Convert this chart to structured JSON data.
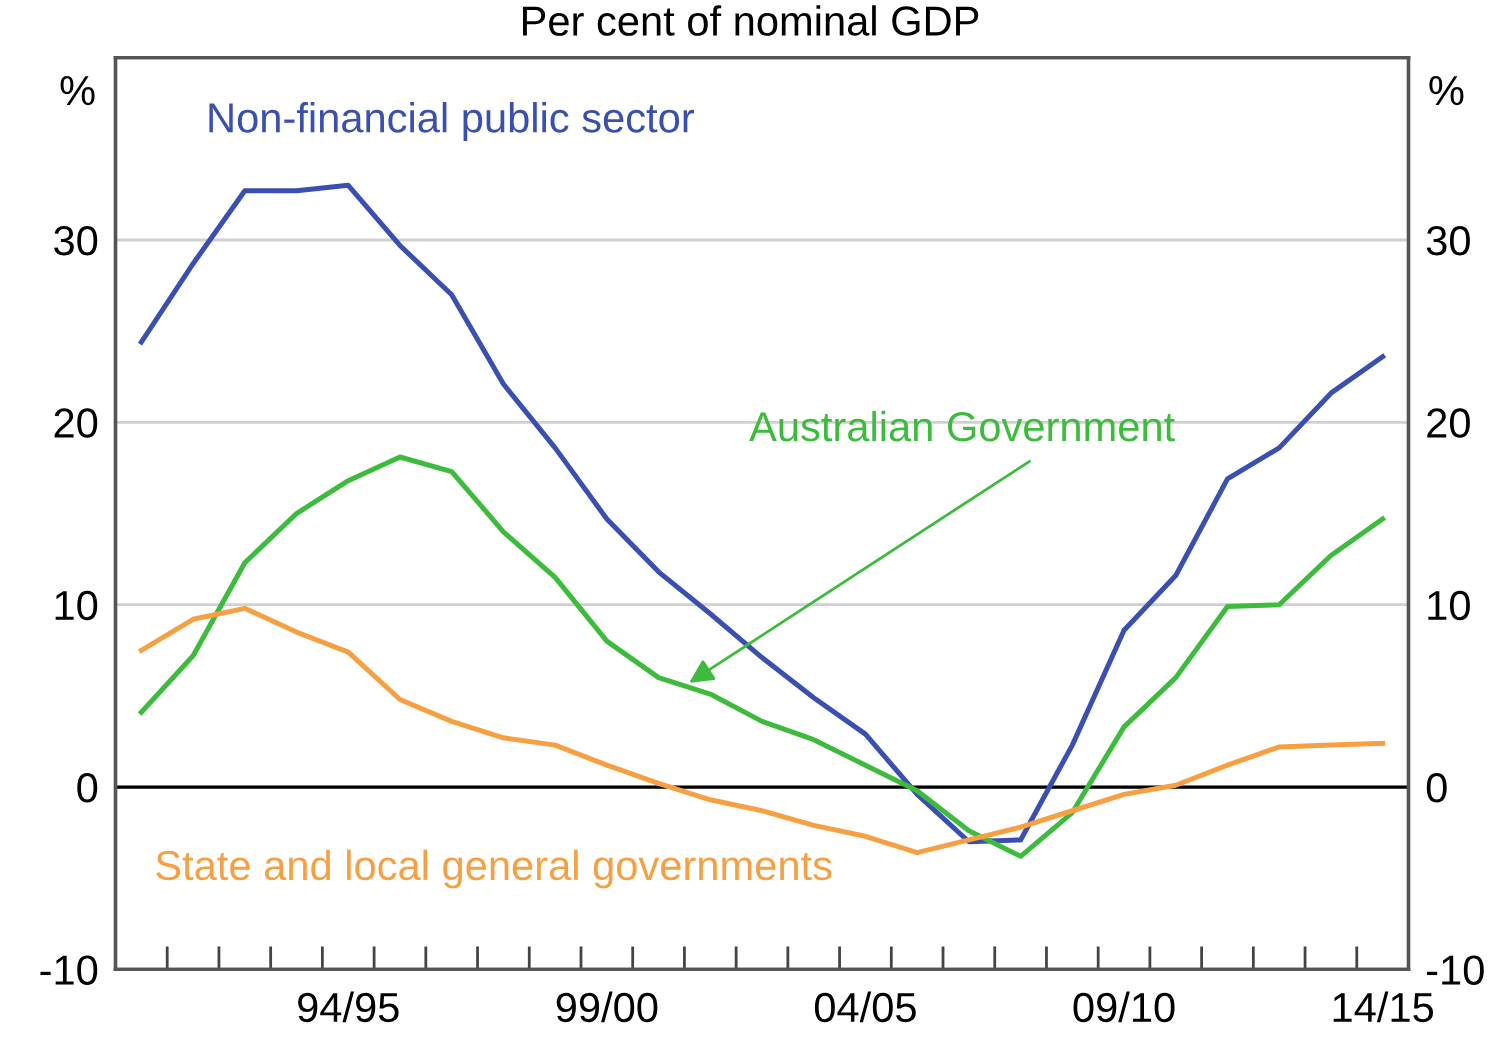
{
  "chart_data": {
    "type": "line",
    "title": "Per cent of nominal GDP",
    "ylabel": "%",
    "y2label": "%",
    "categories": [
      null,
      null,
      null,
      null,
      "94/95",
      null,
      null,
      null,
      null,
      "99/00",
      null,
      null,
      null,
      null,
      "04/05",
      null,
      null,
      null,
      null,
      "09/10",
      null,
      null,
      null,
      null,
      "14/15"
    ],
    "series": [
      {
        "name": "Non-financial public sector",
        "color": "#3a4fb0",
        "values": [
          24.4,
          28.7,
          32.7,
          32.7,
          33.0,
          29.7,
          27.0,
          22.1,
          18.6,
          14.7,
          11.8,
          9.5,
          7.1,
          4.9,
          2.9,
          -0.4,
          -3.0,
          -2.9,
          2.3,
          8.6,
          11.6,
          16.9,
          18.6,
          21.6,
          23.6
        ]
      },
      {
        "name": "Australian Government",
        "color": "#3dbb3d",
        "values": [
          4.1,
          7.2,
          12.3,
          15.0,
          16.8,
          18.1,
          17.3,
          14.0,
          11.5,
          8.0,
          6.0,
          5.1,
          3.6,
          2.6,
          1.2,
          -0.2,
          -2.4,
          -3.8,
          -1.4,
          3.3,
          6.0,
          9.9,
          10.0,
          12.7,
          14.7
        ]
      },
      {
        "name": "State and local general governments",
        "color": "#f7a043",
        "values": [
          7.5,
          9.2,
          9.8,
          8.5,
          7.4,
          4.8,
          3.6,
          2.7,
          2.3,
          1.2,
          0.2,
          -0.7,
          -1.3,
          -2.1,
          -2.7,
          -3.6,
          -2.9,
          -2.2,
          -1.3,
          -0.4,
          0.1,
          1.2,
          2.2,
          2.3,
          2.4
        ]
      }
    ],
    "ylim": [
      -10,
      40
    ],
    "yticks": [
      -10,
      0,
      10,
      20,
      30
    ],
    "y2lim": [
      -10,
      40
    ],
    "y2ticks": [
      -10,
      0,
      10,
      20,
      30
    ],
    "ref_lines": [
      {
        "axis": "y",
        "value": 0,
        "color": "#000000"
      }
    ],
    "grid": "y",
    "legend": false,
    "marker": "none",
    "line_style": "solid"
  }
}
